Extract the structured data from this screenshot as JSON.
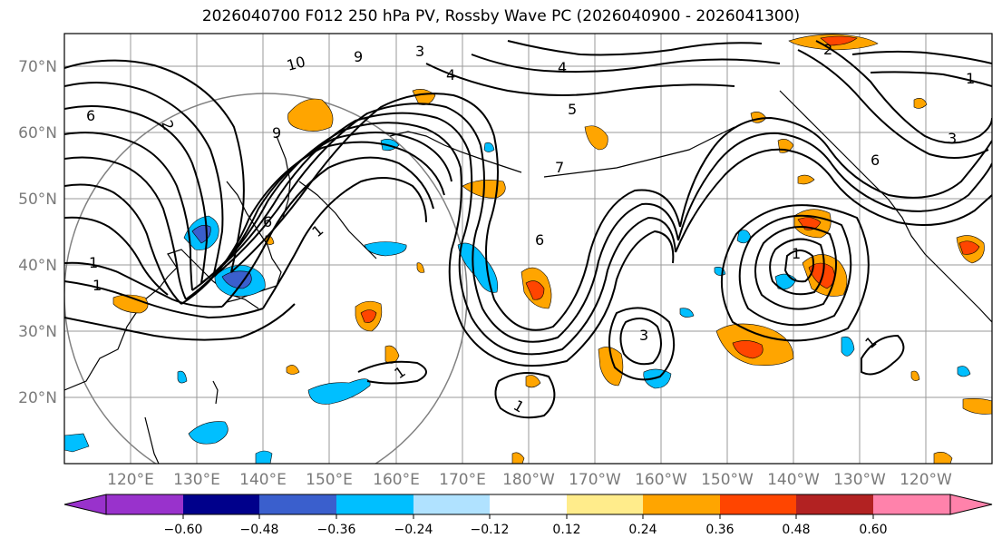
{
  "title": "2026040700 F012 250 hPa PV, Rossby Wave PC (2026040900 - 2026041300)",
  "map": {
    "region": "North Pacific",
    "lat_labels": [
      "70°N",
      "60°N",
      "50°N",
      "40°N",
      "30°N",
      "20°N"
    ],
    "lon_labels": [
      "120°E",
      "130°E",
      "140°E",
      "150°E",
      "160°E",
      "170°E",
      "180°W",
      "170°W",
      "160°W",
      "150°W",
      "140°W",
      "130°W",
      "120°W"
    ],
    "contour_labels": [
      "10",
      "6",
      "4",
      "3",
      "2",
      "1",
      "5",
      "7",
      "9"
    ]
  },
  "colorbar": {
    "ticks": [
      "−0.60",
      "−0.48",
      "−0.36",
      "−0.24",
      "−0.12",
      "0.12",
      "0.24",
      "0.36",
      "0.48",
      "0.60"
    ],
    "colors": [
      "#9932cc",
      "#00008b",
      "#3a5fcd",
      "#00bfff",
      "#b0e2ff",
      "#ffffff",
      "#ffec8b",
      "#ffa500",
      "#ff4500",
      "#b22222",
      "#ff82ab"
    ]
  }
}
